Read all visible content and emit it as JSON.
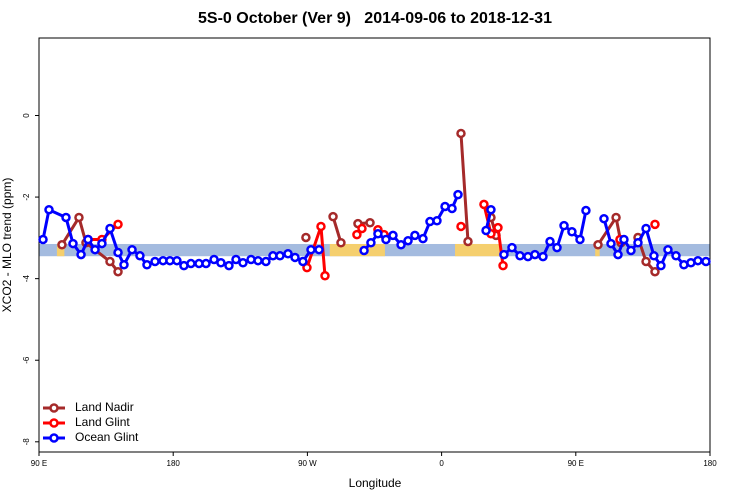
{
  "chart_data": {
    "type": "line",
    "title": "5S-0 October (Ver 9)   2014-09-06 to 2018-12-31",
    "x_label": "Longitude",
    "y_label": "XCO2 - MLO trend (ppm)",
    "xlim": [
      90,
      540
    ],
    "ylim": [
      -8.25,
      1.9
    ],
    "xticks": [
      {
        "value": 90,
        "label": "90 E"
      },
      {
        "value": 180,
        "label": "180"
      },
      {
        "value": 270,
        "label": "90 W"
      },
      {
        "value": 360,
        "label": "0"
      },
      {
        "value": 450,
        "label": "90 E"
      },
      {
        "value": 540,
        "label": "180"
      }
    ],
    "yticks": [
      0,
      -2,
      -4,
      -6,
      -8
    ],
    "band": {
      "ylim": [
        -3.45,
        -3.15
      ],
      "color": "#a4bbdf",
      "land": [
        [
          102,
          107
        ],
        [
          285,
          322
        ],
        [
          369,
          399
        ],
        [
          463,
          466
        ]
      ],
      "land_color": "#f5cf6e"
    },
    "legend": "bottom-left",
    "series": [
      {
        "name": "Land Nadir",
        "color": "#a52a2a",
        "x": [
          105.4,
          116.8,
          121.5,
          137.6,
          143,
          null,
          269,
          null,
          287.2,
          292.5,
          null,
          303.9,
          312,
          null,
          373,
          377.7,
          null,
          393.1,
          396.5,
          null,
          464.9,
          477,
          480.3,
          null,
          491.7,
          497.1,
          503.1
        ],
        "values": [
          -3.17,
          -2.5,
          -3.12,
          -3.58,
          -3.83,
          null,
          -2.99,
          null,
          -2.48,
          -3.12,
          null,
          -2.65,
          -2.63,
          null,
          -0.44,
          -3.09,
          null,
          -2.5,
          -2.94,
          null,
          -3.17,
          -2.5,
          -3.12,
          null,
          -2.99,
          -3.58,
          -3.83
        ]
      },
      {
        "name": "Land Glint",
        "color": "#ff0000",
        "x": [
          122.9,
          132.2,
          143,
          null,
          269.7,
          279.1,
          281.8,
          null,
          303.2,
          306.6,
          null,
          317.3,
          321.4,
          null,
          373,
          null,
          388.4,
          393.1,
          397.8,
          401.2,
          null,
          479.6,
          null,
          503.1
        ],
        "values": [
          -3.04,
          -3.04,
          -2.67,
          null,
          -3.73,
          -2.72,
          -3.93,
          null,
          -2.92,
          -2.77,
          null,
          -2.8,
          -2.92,
          null,
          -2.72,
          null,
          -2.18,
          -2.9,
          -2.75,
          -3.68,
          null,
          -3.04,
          null,
          -2.67
        ]
      },
      {
        "name": "Ocean Glint",
        "color": "#0000ff",
        "x": [
          92.7,
          96.7,
          108.1,
          112.8,
          118.2,
          122.9,
          127.6,
          132.2,
          137.6,
          143,
          147,
          152.4,
          157.7,
          162.4,
          167.8,
          173.2,
          177.8,
          182.5,
          187.2,
          191.9,
          197.3,
          202,
          207.4,
          212,
          217.4,
          222.1,
          226.8,
          232.2,
          236.9,
          242.2,
          246.9,
          251.6,
          257,
          261.7,
          267,
          272.4,
          277.8,
          null,
          308,
          312.6,
          317.3,
          322.7,
          327.4,
          332.8,
          337.5,
          342.1,
          347.5,
          352.2,
          356.9,
          362.3,
          367,
          371,
          null,
          389.8,
          393.1,
          null,
          401.8,
          407.2,
          412.6,
          417.9,
          422.6,
          428,
          432.7,
          437.4,
          442.1,
          447.4,
          452.8,
          456.8,
          null,
          468.9,
          473.6,
          478.3,
          482.3,
          487,
          491.7,
          497.1,
          502.4,
          507.1,
          511.8,
          517.2,
          522.5,
          527.2,
          531.9,
          537.3
        ],
        "values": [
          -3.04,
          -2.31,
          -2.5,
          -3.14,
          -3.41,
          -3.04,
          -3.29,
          -3.14,
          -2.77,
          -3.36,
          -3.66,
          -3.29,
          -3.44,
          -3.66,
          -3.58,
          -3.56,
          -3.56,
          -3.56,
          -3.68,
          -3.63,
          -3.63,
          -3.63,
          -3.53,
          -3.61,
          -3.68,
          -3.53,
          -3.61,
          -3.53,
          -3.56,
          -3.58,
          -3.44,
          -3.44,
          -3.39,
          -3.48,
          -3.58,
          -3.29,
          -3.29,
          null,
          -3.31,
          -3.12,
          -2.9,
          -3.04,
          -2.94,
          -3.17,
          -3.07,
          -2.94,
          -3.02,
          -2.6,
          -2.58,
          -2.23,
          -2.28,
          -1.94,
          null,
          -2.82,
          -2.31,
          null,
          -3.41,
          -3.24,
          -3.44,
          -3.46,
          -3.41,
          -3.46,
          -3.09,
          -3.24,
          -2.7,
          -2.85,
          -3.04,
          -2.33,
          null,
          -2.53,
          -3.14,
          -3.41,
          -3.04,
          -3.31,
          -3.12,
          -2.77,
          -3.44,
          -3.68,
          -3.29,
          -3.44,
          -3.66,
          -3.61,
          -3.56,
          -3.58
        ]
      }
    ]
  }
}
